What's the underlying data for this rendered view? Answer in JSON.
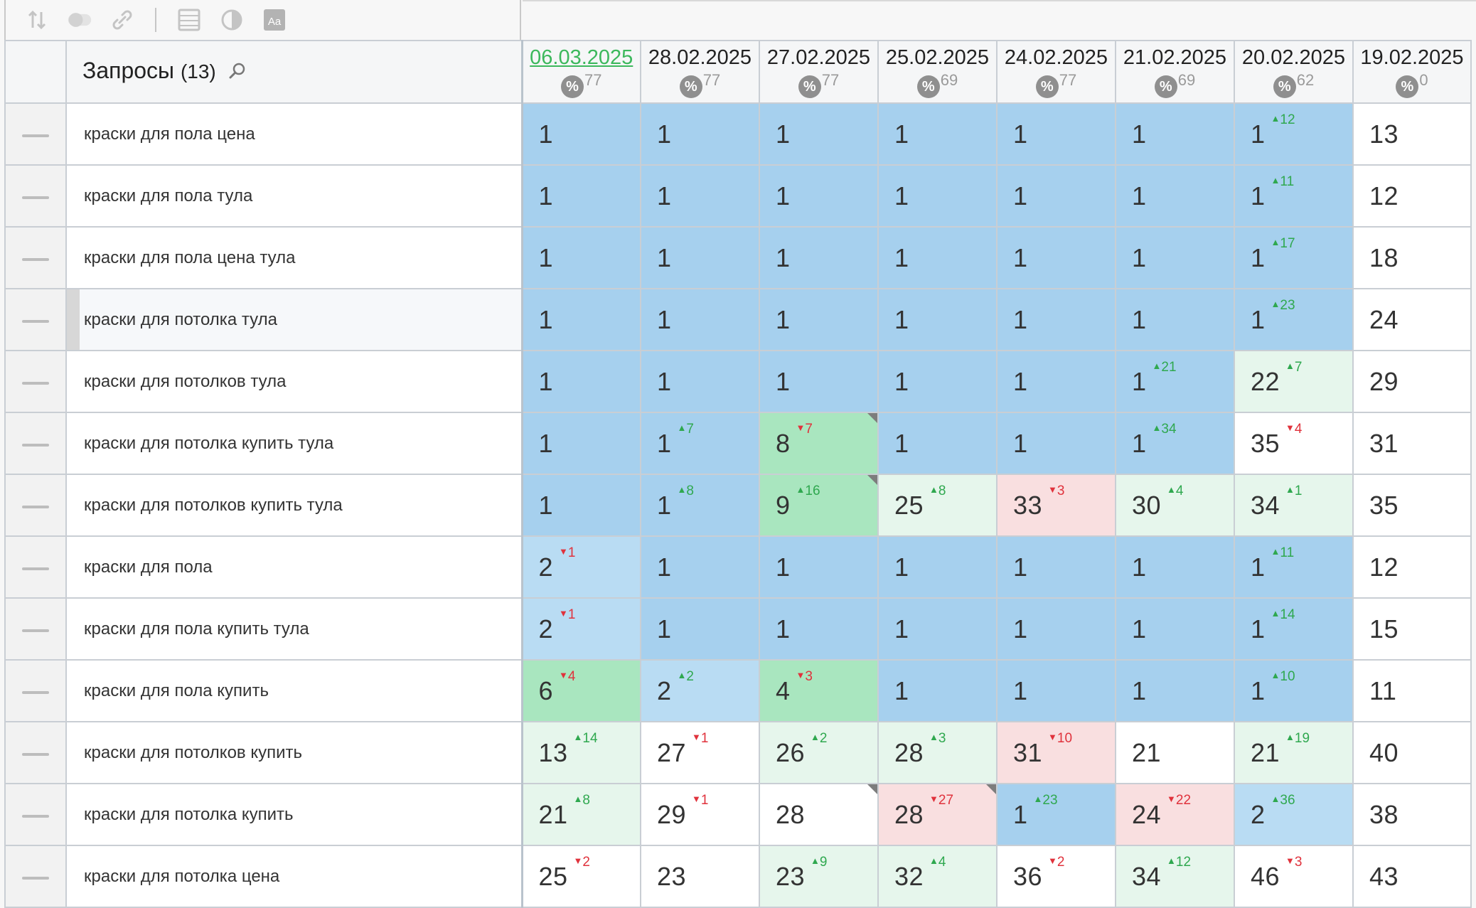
{
  "toolbar": {
    "icons": [
      "sort-icon",
      "toggle-icon",
      "link-icon",
      "separator",
      "table-icon",
      "contrast-icon",
      "font-icon"
    ]
  },
  "table": {
    "title": "Запросы",
    "count": "(13)",
    "dates": [
      {
        "date": "06.03.2025",
        "pct": "77",
        "active": true
      },
      {
        "date": "28.02.2025",
        "pct": "77",
        "active": false
      },
      {
        "date": "27.02.2025",
        "pct": "77",
        "active": false
      },
      {
        "date": "25.02.2025",
        "pct": "69",
        "active": false
      },
      {
        "date": "24.02.2025",
        "pct": "77",
        "active": false
      },
      {
        "date": "21.02.2025",
        "pct": "69",
        "active": false
      },
      {
        "date": "20.02.2025",
        "pct": "62",
        "active": false
      },
      {
        "date": "19.02.2025",
        "pct": "0",
        "active": false
      }
    ],
    "rows": [
      {
        "query": "краски для пола цена",
        "cells": [
          {
            "v": "1",
            "bg": "blue"
          },
          {
            "v": "1",
            "bg": "blue"
          },
          {
            "v": "1",
            "bg": "blue"
          },
          {
            "v": "1",
            "bg": "blue"
          },
          {
            "v": "1",
            "bg": "blue"
          },
          {
            "v": "1",
            "bg": "blue"
          },
          {
            "v": "1",
            "bg": "blue",
            "d": "12",
            "dir": "up"
          },
          {
            "v": "13",
            "bg": "white"
          }
        ]
      },
      {
        "query": "краски для пола тула",
        "cells": [
          {
            "v": "1",
            "bg": "blue"
          },
          {
            "v": "1",
            "bg": "blue"
          },
          {
            "v": "1",
            "bg": "blue"
          },
          {
            "v": "1",
            "bg": "blue"
          },
          {
            "v": "1",
            "bg": "blue"
          },
          {
            "v": "1",
            "bg": "blue"
          },
          {
            "v": "1",
            "bg": "blue",
            "d": "11",
            "dir": "up"
          },
          {
            "v": "12",
            "bg": "white"
          }
        ]
      },
      {
        "query": "краски для пола цена тула",
        "cells": [
          {
            "v": "1",
            "bg": "blue"
          },
          {
            "v": "1",
            "bg": "blue"
          },
          {
            "v": "1",
            "bg": "blue"
          },
          {
            "v": "1",
            "bg": "blue"
          },
          {
            "v": "1",
            "bg": "blue"
          },
          {
            "v": "1",
            "bg": "blue"
          },
          {
            "v": "1",
            "bg": "blue",
            "d": "17",
            "dir": "up"
          },
          {
            "v": "18",
            "bg": "white"
          }
        ]
      },
      {
        "query": "краски для потолка тула",
        "marked": true,
        "cells": [
          {
            "v": "1",
            "bg": "blue"
          },
          {
            "v": "1",
            "bg": "blue"
          },
          {
            "v": "1",
            "bg": "blue"
          },
          {
            "v": "1",
            "bg": "blue"
          },
          {
            "v": "1",
            "bg": "blue"
          },
          {
            "v": "1",
            "bg": "blue"
          },
          {
            "v": "1",
            "bg": "blue",
            "d": "23",
            "dir": "up"
          },
          {
            "v": "24",
            "bg": "white"
          }
        ]
      },
      {
        "query": "краски для потолков тула",
        "cells": [
          {
            "v": "1",
            "bg": "blue"
          },
          {
            "v": "1",
            "bg": "blue"
          },
          {
            "v": "1",
            "bg": "blue"
          },
          {
            "v": "1",
            "bg": "blue"
          },
          {
            "v": "1",
            "bg": "blue"
          },
          {
            "v": "1",
            "bg": "blue",
            "d": "21",
            "dir": "up"
          },
          {
            "v": "22",
            "bg": "lgreen",
            "d": "7",
            "dir": "up"
          },
          {
            "v": "29",
            "bg": "white"
          }
        ]
      },
      {
        "query": "краски для потолка купить тула",
        "cells": [
          {
            "v": "1",
            "bg": "blue"
          },
          {
            "v": "1",
            "bg": "blue",
            "d": "7",
            "dir": "up"
          },
          {
            "v": "8",
            "bg": "green",
            "d": "7",
            "dir": "down",
            "corner": true
          },
          {
            "v": "1",
            "bg": "blue"
          },
          {
            "v": "1",
            "bg": "blue"
          },
          {
            "v": "1",
            "bg": "blue",
            "d": "34",
            "dir": "up"
          },
          {
            "v": "35",
            "bg": "white",
            "d": "4",
            "dir": "down"
          },
          {
            "v": "31",
            "bg": "white"
          }
        ]
      },
      {
        "query": "краски для потолков купить тула",
        "cells": [
          {
            "v": "1",
            "bg": "blue"
          },
          {
            "v": "1",
            "bg": "blue",
            "d": "8",
            "dir": "up"
          },
          {
            "v": "9",
            "bg": "green",
            "d": "16",
            "dir": "up",
            "corner": true
          },
          {
            "v": "25",
            "bg": "lgreen",
            "d": "8",
            "dir": "up"
          },
          {
            "v": "33",
            "bg": "red",
            "d": "3",
            "dir": "down"
          },
          {
            "v": "30",
            "bg": "lgreen",
            "d": "4",
            "dir": "up"
          },
          {
            "v": "34",
            "bg": "lgreen",
            "d": "1",
            "dir": "up"
          },
          {
            "v": "35",
            "bg": "white"
          }
        ]
      },
      {
        "query": "краски для пола",
        "cells": [
          {
            "v": "2",
            "bg": "lblue",
            "d": "1",
            "dir": "down"
          },
          {
            "v": "1",
            "bg": "blue"
          },
          {
            "v": "1",
            "bg": "blue"
          },
          {
            "v": "1",
            "bg": "blue"
          },
          {
            "v": "1",
            "bg": "blue"
          },
          {
            "v": "1",
            "bg": "blue"
          },
          {
            "v": "1",
            "bg": "blue",
            "d": "11",
            "dir": "up"
          },
          {
            "v": "12",
            "bg": "white"
          }
        ]
      },
      {
        "query": "краски для пола купить тула",
        "cells": [
          {
            "v": "2",
            "bg": "lblue",
            "d": "1",
            "dir": "down"
          },
          {
            "v": "1",
            "bg": "blue"
          },
          {
            "v": "1",
            "bg": "blue"
          },
          {
            "v": "1",
            "bg": "blue"
          },
          {
            "v": "1",
            "bg": "blue"
          },
          {
            "v": "1",
            "bg": "blue"
          },
          {
            "v": "1",
            "bg": "blue",
            "d": "14",
            "dir": "up"
          },
          {
            "v": "15",
            "bg": "white"
          }
        ]
      },
      {
        "query": "краски для пола купить",
        "cells": [
          {
            "v": "6",
            "bg": "green",
            "d": "4",
            "dir": "down"
          },
          {
            "v": "2",
            "bg": "lblue",
            "d": "2",
            "dir": "up"
          },
          {
            "v": "4",
            "bg": "green",
            "d": "3",
            "dir": "down"
          },
          {
            "v": "1",
            "bg": "blue"
          },
          {
            "v": "1",
            "bg": "blue"
          },
          {
            "v": "1",
            "bg": "blue"
          },
          {
            "v": "1",
            "bg": "blue",
            "d": "10",
            "dir": "up"
          },
          {
            "v": "11",
            "bg": "white"
          }
        ]
      },
      {
        "query": "краски для потолков купить",
        "cells": [
          {
            "v": "13",
            "bg": "lgreen",
            "d": "14",
            "dir": "up"
          },
          {
            "v": "27",
            "bg": "white",
            "d": "1",
            "dir": "down"
          },
          {
            "v": "26",
            "bg": "lgreen",
            "d": "2",
            "dir": "up"
          },
          {
            "v": "28",
            "bg": "lgreen",
            "d": "3",
            "dir": "up"
          },
          {
            "v": "31",
            "bg": "red",
            "d": "10",
            "dir": "down"
          },
          {
            "v": "21",
            "bg": "white"
          },
          {
            "v": "21",
            "bg": "lgreen",
            "d": "19",
            "dir": "up"
          },
          {
            "v": "40",
            "bg": "white"
          }
        ]
      },
      {
        "query": "краски для потолка купить",
        "cells": [
          {
            "v": "21",
            "bg": "lgreen",
            "d": "8",
            "dir": "up"
          },
          {
            "v": "29",
            "bg": "white",
            "d": "1",
            "dir": "down"
          },
          {
            "v": "28",
            "bg": "white",
            "corner": true
          },
          {
            "v": "28",
            "bg": "red",
            "d": "27",
            "dir": "down",
            "corner": true
          },
          {
            "v": "1",
            "bg": "blue",
            "d": "23",
            "dir": "up"
          },
          {
            "v": "24",
            "bg": "red",
            "d": "22",
            "dir": "down"
          },
          {
            "v": "2",
            "bg": "lblue",
            "d": "36",
            "dir": "up"
          },
          {
            "v": "38",
            "bg": "white"
          }
        ]
      },
      {
        "query": "краски для потолка цена",
        "cells": [
          {
            "v": "25",
            "bg": "white",
            "d": "2",
            "dir": "down"
          },
          {
            "v": "23",
            "bg": "white"
          },
          {
            "v": "23",
            "bg": "lgreen",
            "d": "9",
            "dir": "up"
          },
          {
            "v": "32",
            "bg": "lgreen",
            "d": "4",
            "dir": "up"
          },
          {
            "v": "36",
            "bg": "white",
            "d": "2",
            "dir": "down"
          },
          {
            "v": "34",
            "bg": "lgreen",
            "d": "12",
            "dir": "up"
          },
          {
            "v": "46",
            "bg": "white",
            "d": "3",
            "dir": "down"
          },
          {
            "v": "43",
            "bg": "white"
          }
        ]
      }
    ]
  }
}
